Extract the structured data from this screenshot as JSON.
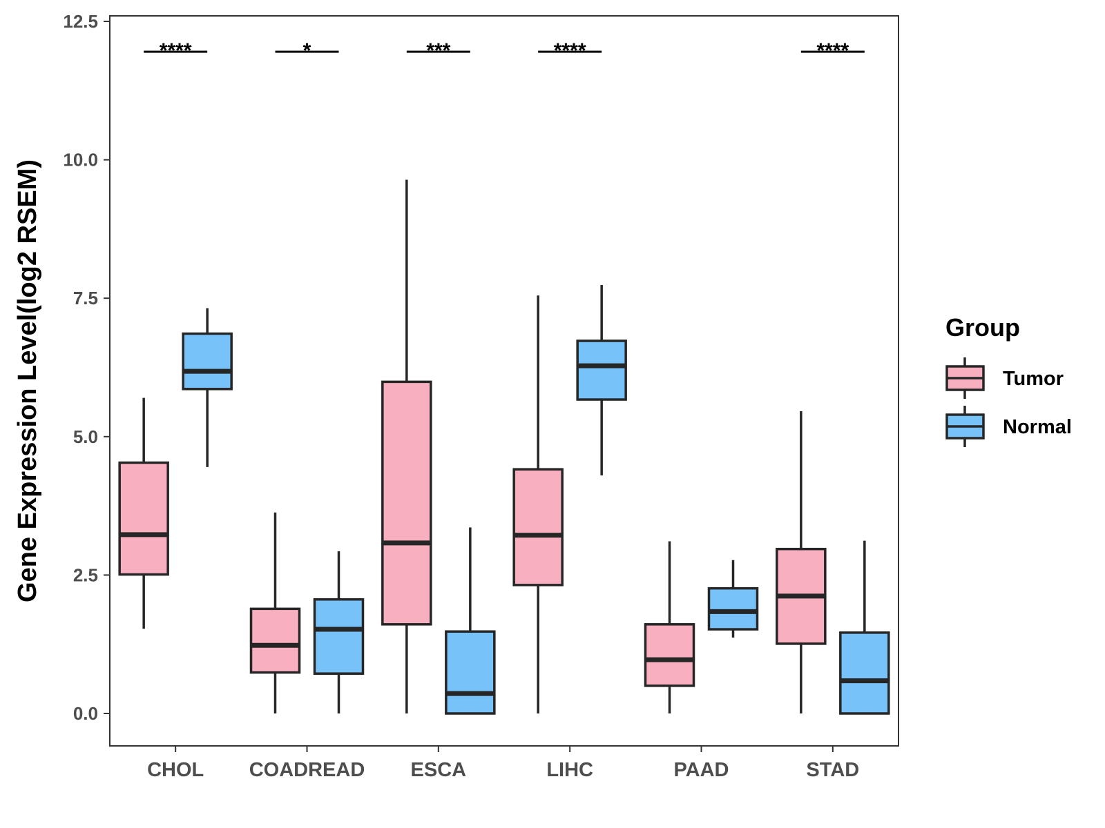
{
  "chart_data": {
    "type": "boxplot",
    "title": "",
    "xlabel": "",
    "ylabel": "Gene Expression Level(log2 RSEM)",
    "ylim": [
      -0.6,
      12.5
    ],
    "yticks": [
      "0.0",
      "2.5",
      "5.0",
      "7.5",
      "10.0",
      "12.5"
    ],
    "categories": [
      "CHOL",
      "COADREAD",
      "ESCA",
      "LIHC",
      "PAAD",
      "STAD"
    ],
    "grid": false,
    "legend": {
      "title": "Group",
      "position": "right",
      "entries": [
        {
          "name": "Tumor",
          "color": "#F8AFC0"
        },
        {
          "name": "Normal",
          "color": "#76C2F9"
        }
      ]
    },
    "series": [
      {
        "name": "Tumor",
        "color": "#F8AFC0",
        "boxes": [
          {
            "min": 1.53,
            "q1": 2.51,
            "median": 3.23,
            "q3": 4.53,
            "max": 5.7
          },
          {
            "min": 0.0,
            "q1": 0.74,
            "median": 1.23,
            "q3": 1.89,
            "max": 3.63
          },
          {
            "min": 0.0,
            "q1": 1.61,
            "median": 3.08,
            "q3": 5.99,
            "max": 9.64
          },
          {
            "min": 0.0,
            "q1": 2.32,
            "median": 3.22,
            "q3": 4.41,
            "max": 7.55
          },
          {
            "min": 0.0,
            "q1": 0.5,
            "median": 0.97,
            "q3": 1.61,
            "max": 3.11
          },
          {
            "min": 0.0,
            "q1": 1.26,
            "median": 2.12,
            "q3": 2.97,
            "max": 5.46
          }
        ]
      },
      {
        "name": "Normal",
        "color": "#76C2F9",
        "boxes": [
          {
            "min": 4.45,
            "q1": 5.86,
            "median": 6.18,
            "q3": 6.86,
            "max": 7.32
          },
          {
            "min": 0.0,
            "q1": 0.72,
            "median": 1.52,
            "q3": 2.06,
            "max": 2.93
          },
          {
            "min": 0.0,
            "q1": 0.0,
            "median": 0.36,
            "q3": 1.48,
            "max": 3.36
          },
          {
            "min": 4.3,
            "q1": 5.67,
            "median": 6.28,
            "q3": 6.73,
            "max": 7.74
          },
          {
            "min": 1.37,
            "q1": 1.52,
            "median": 1.84,
            "q3": 2.26,
            "max": 2.77
          },
          {
            "min": 0.0,
            "q1": 0.0,
            "median": 0.59,
            "q3": 1.46,
            "max": 3.12
          }
        ]
      }
    ],
    "significance": [
      {
        "category": "CHOL",
        "label": "****"
      },
      {
        "category": "COADREAD",
        "label": "*"
      },
      {
        "category": "ESCA",
        "label": "***"
      },
      {
        "category": "LIHC",
        "label": "****"
      },
      {
        "category": "PAAD",
        "label": ""
      },
      {
        "category": "STAD",
        "label": "****"
      }
    ]
  }
}
